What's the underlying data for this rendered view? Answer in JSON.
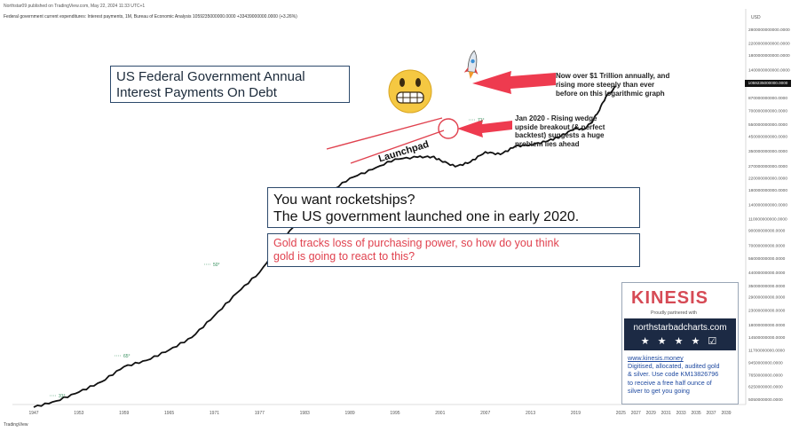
{
  "header": {
    "publisher": "Northstar09 published on TradingView.com, May 22, 2024 11:33 UTC+1",
    "symbol": "Federal government current expenditures: Interest payments, 1M, Bureau of Economic Analysis  1059235000000.0000  +33439000000.0000 (+3.26%)",
    "currency": "USD"
  },
  "price_tag": "1059235000000.0000",
  "footer": "TradingView",
  "title_box": {
    "line1": "US Federal Government Annual",
    "line2": "Interest Payments On Debt"
  },
  "main_text": {
    "line1": "You want rocketships?",
    "line2": "The US government  launched one in early 2020."
  },
  "gold_text": {
    "line1": "Gold tracks loss of purchasing power, so how do you think",
    "line2": "gold is going to react to this?"
  },
  "annotations": {
    "now_over": [
      "Now over $1 Trillion annually, and",
      "rising more steeply than ever",
      "before on this logarithmic graph"
    ],
    "jan2020": [
      "Jan 2020 - Rising wedge",
      "upside breakout (& perfect",
      "backtest) suggests a huge",
      "problem lies ahead"
    ],
    "launchpad": "Launchpad"
  },
  "angle_labels": [
    "31°",
    "65°",
    "50°",
    "71°"
  ],
  "kinesis": {
    "logo": "KINESIS",
    "partner_line": "Proudly partnered with",
    "site": "northstarbadcharts.com",
    "stars": "★ ★ ★ ★ ☑",
    "link": "www.kinesis.money",
    "body": [
      "Digitised, allocated, audited gold",
      "& silver. Use code KM13826796",
      "to receive a free half ounce of",
      "silver to get you going"
    ]
  },
  "colors": {
    "line": "#111111",
    "wedge": "#e0414e",
    "arrow": "#ee3b4f",
    "box_border": "#2d4a6c",
    "angle": "#2e8b57"
  },
  "icons": [
    "grimacing-face-icon",
    "rocket-icon"
  ],
  "chart_data": {
    "type": "line",
    "scale": "log",
    "x_ticks": [
      "1947",
      "1953",
      "1959",
      "1965",
      "1971",
      "1977",
      "1983",
      "1989",
      "1995",
      "2001",
      "2007",
      "2013",
      "2019",
      "2025",
      "2027",
      "2029",
      "2031",
      "2033",
      "2035",
      "2037",
      "2039"
    ],
    "y_ticks": [
      "2800000000000.0000",
      "2200000000000.0000",
      "1800000000000.0000",
      "1400000000000.0000",
      "1150000000000.0000",
      "870000000000.0000",
      "700000000000.0000",
      "550000000000.0000",
      "450000000000.0000",
      "350000000000.0000",
      "270000000000.0000",
      "220000000000.0000",
      "180000000000.0000",
      "140000000000.0000",
      "110000000000.0000",
      "90000000000.0000",
      "70000000000.0000",
      "56000000000.0000",
      "44000000000.0000",
      "35000000000.0000",
      "29000000000.0000",
      "23000000000.0000",
      "18000000000.0000",
      "14500000000.0000",
      "11700000000.0000",
      "9450000000.0000",
      "7650000000.0000",
      "6250000000.0000",
      "5050000000.0000"
    ],
    "series": [
      {
        "values": [
          [
            1947,
            4400000000.0
          ],
          [
            1950,
            4900000000.0
          ],
          [
            1953,
            5700000000.0
          ],
          [
            1956,
            6800000000.0
          ],
          [
            1959,
            8800000000.0
          ],
          [
            1962,
            9800000000.0
          ],
          [
            1965,
            11700000000.0
          ],
          [
            1968,
            14500000000.0
          ],
          [
            1971,
            21000000000.0
          ],
          [
            1974,
            31000000000.0
          ],
          [
            1977,
            44000000000.0
          ],
          [
            1980,
            75000000000.0
          ],
          [
            1983,
            125000000000.0
          ],
          [
            1986,
            168000000000.0
          ],
          [
            1989,
            220000000000.0
          ],
          [
            1992,
            255000000000.0
          ],
          [
            1995,
            305000000000.0
          ],
          [
            1998,
            315000000000.0
          ],
          [
            2000,
            318000000000.0
          ],
          [
            2001,
            300000000000.0
          ],
          [
            2003,
            268000000000.0
          ],
          [
            2005,
            290000000000.0
          ],
          [
            2007,
            345000000000.0
          ],
          [
            2009,
            330000000000.0
          ],
          [
            2011,
            380000000000.0
          ],
          [
            2013,
            390000000000.0
          ],
          [
            2015,
            410000000000.0
          ],
          [
            2017,
            450000000000.0
          ],
          [
            2019,
            520000000000.0
          ],
          [
            2020,
            505000000000.0
          ],
          [
            2021,
            560000000000.0
          ],
          [
            2022,
            680000000000.0
          ],
          [
            2023,
            880000000000.0
          ],
          [
            2024.4,
            1059235000000.0
          ]
        ]
      }
    ]
  }
}
